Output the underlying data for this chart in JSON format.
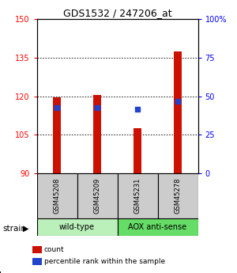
{
  "title": "GDS1532 / 247206_at",
  "samples": [
    "GSM45208",
    "GSM45209",
    "GSM45231",
    "GSM45278"
  ],
  "bar_bottoms": [
    90,
    90,
    90,
    90
  ],
  "bar_tops": [
    119.5,
    120.5,
    107.5,
    137.5
  ],
  "blue_dot_values": [
    115.5,
    115.5,
    115.0,
    118.0
  ],
  "groups": [
    {
      "label": "wild-type",
      "samples": [
        0,
        1
      ],
      "color": "#bbf0bb"
    },
    {
      "label": "AOX anti-sense",
      "samples": [
        2,
        3
      ],
      "color": "#66dd66"
    }
  ],
  "ylim": [
    90,
    150
  ],
  "yticks_left": [
    90,
    105,
    120,
    135,
    150
  ],
  "yticks_right": [
    0,
    25,
    50,
    75,
    100
  ],
  "bar_color": "#cc1100",
  "blue_color": "#2244cc",
  "legend_items": [
    {
      "label": "count",
      "color": "#cc1100"
    },
    {
      "label": "percentile rank within the sample",
      "color": "#2244cc"
    }
  ]
}
